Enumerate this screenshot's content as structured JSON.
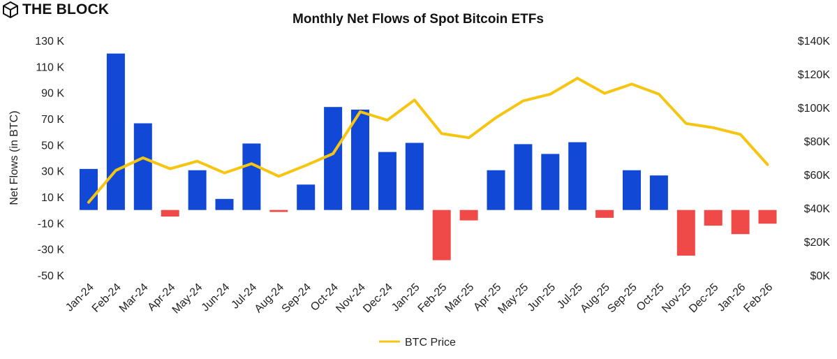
{
  "brand": {
    "name": "THE BLOCK",
    "icon": "cube-logo-icon"
  },
  "colors": {
    "inflow": "#1149d6",
    "outflow": "#f04a48",
    "price": "#f6c511"
  },
  "chart_data": {
    "type": "bar",
    "title": "Monthly Net Flows of Spot Bitcoin ETFs",
    "ylabel": "Net Flows (in BTC)",
    "xlabel": "",
    "categories": [
      "Jan-24",
      "Feb-24",
      "Mar-24",
      "Apr-24",
      "May-24",
      "Jun-24",
      "Jul-24",
      "Aug-24",
      "Sep-24",
      "Oct-24",
      "Nov-24",
      "Dec-24",
      "Jan-25",
      "Feb-25",
      "Mar-25",
      "Apr-25",
      "May-25",
      "Jun-25",
      "Jul-25",
      "Aug-25",
      "Sep-25",
      "Oct-25",
      "Nov-25",
      "Dec-25",
      "Jan-26",
      "Feb-26"
    ],
    "series": [
      {
        "name": "Net Flows",
        "axis": "left",
        "type": "bar",
        "values": [
          31500,
          120000,
          66500,
          -5000,
          30500,
          8500,
          51000,
          -1500,
          19500,
          79000,
          77000,
          44500,
          51500,
          -38500,
          -8000,
          30500,
          50500,
          43000,
          52000,
          -6000,
          30500,
          26500,
          -35000,
          -12000,
          -18500,
          -10500
        ]
      },
      {
        "name": "BTC Price",
        "axis": "right",
        "type": "line",
        "values": [
          43500,
          62500,
          70000,
          63500,
          68000,
          61000,
          66500,
          59000,
          65500,
          72500,
          97500,
          92500,
          104500,
          84500,
          82000,
          94000,
          104000,
          108000,
          117500,
          108500,
          114000,
          108000,
          90500,
          88000,
          84000,
          66000
        ]
      }
    ],
    "y_left": {
      "ylim": [
        -50000,
        130000
      ],
      "ticks": [
        130000,
        110000,
        90000,
        70000,
        50000,
        30000,
        10000,
        -10000,
        -30000,
        -50000
      ],
      "tick_labels": [
        "130 K",
        "110 K",
        "90 K",
        "70 K",
        "50 K",
        "30 K",
        "10 K",
        "-10 K",
        "-30 K",
        "-50 K"
      ]
    },
    "y_right": {
      "ylim": [
        0,
        140000
      ],
      "ticks": [
        140000,
        120000,
        100000,
        80000,
        60000,
        40000,
        20000,
        0
      ],
      "tick_labels": [
        "$140K",
        "$120K",
        "$100K",
        "$80K",
        "$60K",
        "$40K",
        "$20K",
        "$0K"
      ]
    },
    "legend": {
      "entries": [
        "BTC Price"
      ],
      "placement": "bottom-center"
    },
    "grid": false
  }
}
